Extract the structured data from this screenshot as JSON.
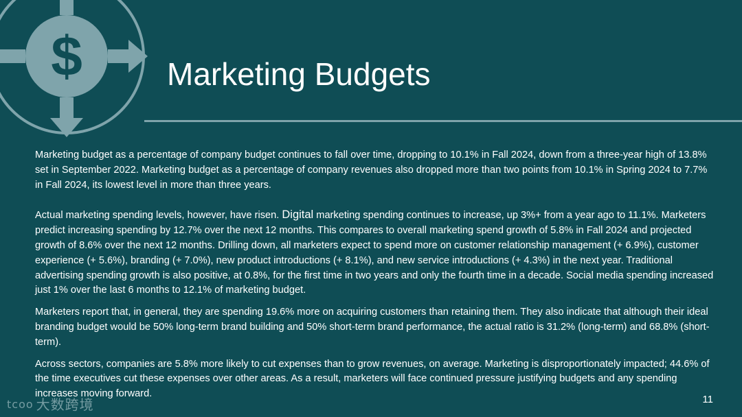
{
  "slide": {
    "title": "Marketing Budgets",
    "page_number": "11",
    "colors": {
      "background": "#0f4d55",
      "accent": "#7fa4ab",
      "text": "#ffffff"
    },
    "icon": "dollar-circle-arrows-icon",
    "paragraphs": {
      "p1": "Marketing budget as a percentage of company budget continues to fall over time, dropping to 10.1% in Fall 2024, down from a three-year high of 13.8% set in September 2022. Marketing budget as a percentage of company revenues also dropped more than two points from 10.1% in Spring 2024 to 7.7% in Fall 2024, its lowest level in more than three years.",
      "p2_before": "Actual marketing spending levels, however, have risen. ",
      "p2_digital": "Digital",
      "p2_after": " marketing spending continues to increase, up 3%+ from a year ago to 11.1%. Marketers predict increasing spending by 12.7% over the next 12 months. This compares to overall marketing spend growth of 5.8% in Fall 2024 and projected growth of 8.6% over the next 12 months. Drilling down, all marketers expect to spend more on customer relationship management (+ 6.9%), customer experience (+ 5.6%), branding (+ 7.0%), new product introductions (+ 8.1%), and new service introductions (+ 4.3%) in the next year. Traditional advertising spending growth is also positive, at 0.8%, for the first time in two years and only the fourth time in a decade. Social media spending increased just 1% over the last 6 months to 12.1% of marketing budget.",
      "p3": "Marketers report that, in general, they are spending 19.6% more on acquiring customers than retaining them. They also indicate that although their ideal branding budget would be 50% long-term brand building and 50% short-term brand performance, the actual ratio is 31.2% (long-term) and 68.8% (short-term).",
      "p4": "Across sectors, companies are 5.8% more likely to cut expenses than to grow revenues, on average. Marketing is disproportionately impacted; 44.6% of the time executives cut these expenses over other areas. As a result, marketers will face continued pressure justifying budgets and any spending increases moving forward."
    }
  },
  "watermark": {
    "logo_glyph": "tcoo",
    "text": "大数跨境"
  }
}
